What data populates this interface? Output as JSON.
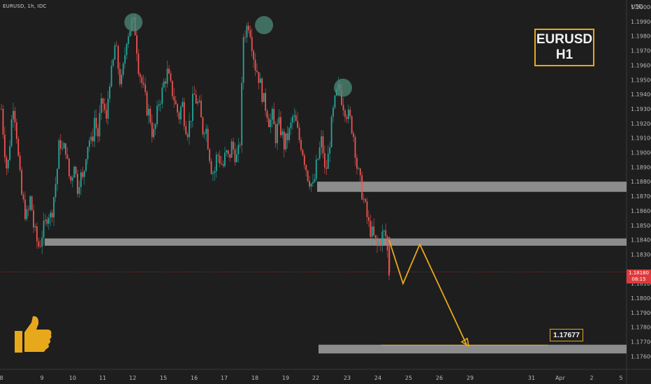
{
  "header": {
    "symbol": "EURUSD, 1h, IDC"
  },
  "title_box": {
    "line1": "EURUSD",
    "line2": "H1"
  },
  "price_axis": {
    "currency": "USD",
    "ticks": [
      "1.20000",
      "1.19900",
      "1.19800",
      "1.19700",
      "1.19600",
      "1.19500",
      "1.19400",
      "1.19300",
      "1.19200",
      "1.19100",
      "1.19000",
      "1.18900",
      "1.18800",
      "1.18700",
      "1.18600",
      "1.18500",
      "1.18400",
      "1.18300",
      "1.18100",
      "1.18000",
      "1.17900",
      "1.17800",
      "1.17700",
      "1.17600"
    ]
  },
  "current_price": {
    "value": "1.18180",
    "countdown": "08:15"
  },
  "target": {
    "label": "1.17677"
  },
  "time_axis": {
    "ticks": [
      "8",
      "9",
      "10",
      "11",
      "12",
      "15",
      "16",
      "17",
      "18",
      "19",
      "22",
      "23",
      "24",
      "25",
      "26",
      "29",
      "31",
      "Apr",
      "2",
      "5"
    ]
  },
  "colors": {
    "background": "#1e1e1e",
    "up": "#26a69a",
    "down": "#ef5350",
    "zone": "#8c8c8c",
    "annotation": "#e8a81c",
    "circle": "#4c8a78"
  },
  "icons": {
    "thumbs_up": "thumbs-up-icon"
  },
  "chart_data": {
    "type": "candlestick",
    "title": "EURUSD H1",
    "ylabel": "USD",
    "ylim": [
      1.1755,
      1.2005
    ],
    "candles_path": [
      1.193,
      1.1905,
      1.1885,
      1.191,
      1.1935,
      1.192,
      1.189,
      1.187,
      1.186,
      1.1855,
      1.187,
      1.185,
      1.184,
      1.1835,
      1.1845,
      1.185,
      1.186,
      1.1855,
      1.187,
      1.1885,
      1.191,
      1.19,
      1.1905,
      1.1885,
      1.188,
      1.1895,
      1.1875,
      1.1885,
      1.188,
      1.19,
      1.191,
      1.1905,
      1.1925,
      1.191,
      1.193,
      1.1935,
      1.192,
      1.195,
      1.1955,
      1.1975,
      1.196,
      1.1945,
      1.196,
      1.198,
      1.1985,
      1.199,
      1.1983,
      1.196,
      1.195,
      1.194,
      1.193,
      1.1925,
      1.191,
      1.192,
      1.1935,
      1.194,
      1.195,
      1.1955,
      1.1945,
      1.194,
      1.193,
      1.1925,
      1.1935,
      1.192,
      1.1915,
      1.1925,
      1.194,
      1.1935,
      1.193,
      1.1915,
      1.192,
      1.1905,
      1.189,
      1.1885,
      1.19,
      1.1895,
      1.189,
      1.19,
      1.1895,
      1.1905,
      1.19,
      1.1895,
      1.191,
      1.198,
      1.1985,
      1.199,
      1.1975,
      1.196,
      1.1955,
      1.1945,
      1.1935,
      1.193,
      1.192,
      1.1925,
      1.191,
      1.192,
      1.1915,
      1.1905,
      1.191,
      1.1915,
      1.1925,
      1.192,
      1.191,
      1.1905,
      1.1895,
      1.1885,
      1.188,
      1.1875,
      1.189,
      1.19,
      1.191,
      1.1885,
      1.1895,
      1.1915,
      1.193,
      1.194,
      1.1945,
      1.1935,
      1.193,
      1.1925,
      1.192,
      1.191,
      1.189,
      1.188,
      1.187,
      1.186,
      1.185,
      1.1845,
      1.184,
      1.1835,
      1.184,
      1.1845,
      1.1842,
      1.1818
    ],
    "peaks": [
      1.199,
      1.1988,
      1.1945
    ],
    "zones": [
      {
        "low": 1.1873,
        "high": 1.188
      },
      {
        "low": 1.1836,
        "high": 1.1841
      },
      {
        "low": 1.1762,
        "high": 1.1768
      }
    ],
    "projection": [
      1.184,
      1.181,
      1.1837,
      1.1768
    ],
    "target_level": 1.17677,
    "current_level": 1.1818
  }
}
